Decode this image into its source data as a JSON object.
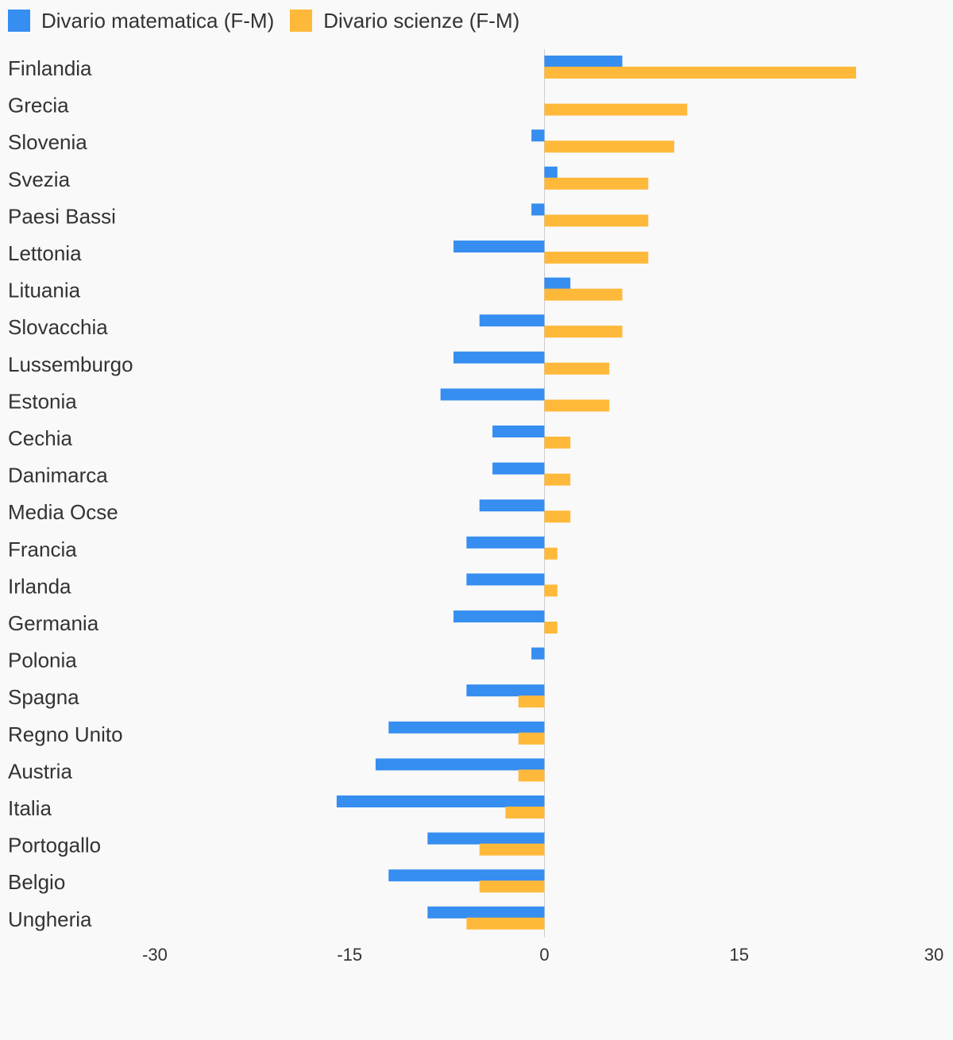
{
  "legend": {
    "items": [
      {
        "label": "Divario matematica (F-M)",
        "color": "#368ef0"
      },
      {
        "label": "Divario scienze (F-M)",
        "color": "#ffb93a"
      }
    ]
  },
  "chart_data": {
    "type": "bar",
    "orientation": "horizontal",
    "title": "",
    "xlabel": "",
    "ylabel": "",
    "xlim": [
      -30,
      30
    ],
    "x_ticks": [
      -30,
      -15,
      0,
      15,
      30
    ],
    "x_tick_labels": [
      "-30",
      "-15",
      "0",
      "15",
      "30"
    ],
    "grid": false,
    "legend_position": "top-left",
    "categories": [
      "Finlandia",
      "Grecia",
      "Slovenia",
      "Svezia",
      "Paesi Bassi",
      "Lettonia",
      "Lituania",
      "Slovacchia",
      "Lussemburgo",
      "Estonia",
      "Cechia",
      "Danimarca",
      "Media Ocse",
      "Francia",
      "Irlanda",
      "Germania",
      "Polonia",
      "Spagna",
      "Regno Unito",
      "Austria",
      "Italia",
      "Portogallo",
      "Belgio",
      "Ungheria"
    ],
    "series": [
      {
        "name": "Divario matematica (F-M)",
        "color": "#368ef0",
        "values": [
          6,
          0,
          -1,
          1,
          -1,
          -7,
          2,
          -5,
          -7,
          -8,
          -4,
          -4,
          -5,
          -6,
          -6,
          -7,
          -1,
          -6,
          -12,
          -13,
          -16,
          -9,
          -12,
          -9
        ]
      },
      {
        "name": "Divario scienze (F-M)",
        "color": "#ffb93a",
        "values": [
          24,
          11,
          10,
          8,
          8,
          8,
          6,
          6,
          5,
          5,
          2,
          2,
          2,
          1,
          1,
          1,
          0,
          -2,
          -2,
          -2,
          -3,
          -5,
          -5,
          -6
        ]
      }
    ]
  }
}
